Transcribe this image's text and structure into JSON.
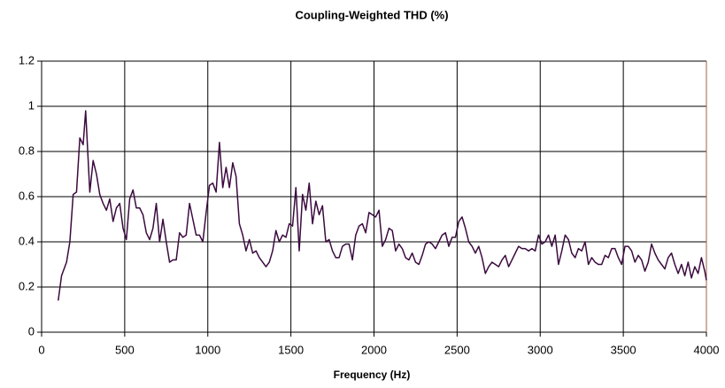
{
  "chart_data": {
    "type": "line",
    "title": "Coupling-Weighted THD (%)",
    "x_label": "Frequency (Hz)",
    "color": "#3b0a3f",
    "grid": true,
    "xlim": [
      0,
      4000
    ],
    "xticks": [
      0,
      500,
      1000,
      1500,
      2000,
      2500,
      3000,
      3500,
      4000
    ],
    "ylim": [
      0,
      1.2
    ],
    "yticks": [
      0,
      0.2,
      0.4,
      0.6,
      0.8,
      1,
      1.2
    ],
    "x": [
      100,
      120,
      150,
      170,
      190,
      210,
      230,
      250,
      265,
      290,
      310,
      330,
      350,
      370,
      390,
      410,
      430,
      450,
      470,
      490,
      510,
      530,
      550,
      570,
      590,
      610,
      630,
      650,
      670,
      690,
      710,
      730,
      750,
      770,
      790,
      810,
      830,
      850,
      870,
      890,
      910,
      930,
      950,
      970,
      990,
      1010,
      1030,
      1050,
      1070,
      1090,
      1110,
      1130,
      1150,
      1170,
      1190,
      1210,
      1230,
      1250,
      1270,
      1290,
      1310,
      1330,
      1350,
      1370,
      1390,
      1410,
      1430,
      1450,
      1470,
      1490,
      1510,
      1530,
      1550,
      1570,
      1590,
      1610,
      1630,
      1650,
      1670,
      1690,
      1710,
      1730,
      1750,
      1770,
      1790,
      1810,
      1830,
      1850,
      1870,
      1890,
      1910,
      1930,
      1950,
      1970,
      1990,
      2010,
      2030,
      2050,
      2070,
      2090,
      2110,
      2130,
      2150,
      2170,
      2190,
      2210,
      2230,
      2250,
      2270,
      2290,
      2310,
      2330,
      2350,
      2370,
      2390,
      2410,
      2430,
      2450,
      2470,
      2490,
      2510,
      2530,
      2550,
      2570,
      2590,
      2610,
      2630,
      2650,
      2670,
      2690,
      2710,
      2730,
      2750,
      2770,
      2790,
      2810,
      2830,
      2850,
      2870,
      2890,
      2910,
      2930,
      2950,
      2970,
      2990,
      3010,
      3030,
      3050,
      3070,
      3090,
      3110,
      3130,
      3150,
      3170,
      3190,
      3210,
      3230,
      3250,
      3270,
      3290,
      3310,
      3330,
      3350,
      3370,
      3390,
      3410,
      3430,
      3450,
      3470,
      3490,
      3510,
      3530,
      3550,
      3570,
      3590,
      3610,
      3630,
      3650,
      3670,
      3690,
      3710,
      3730,
      3750,
      3770,
      3790,
      3810,
      3830,
      3850,
      3870,
      3890,
      3910,
      3930,
      3950,
      3970,
      3990,
      4000
    ],
    "values": [
      0.14,
      0.25,
      0.31,
      0.4,
      0.61,
      0.62,
      0.86,
      0.83,
      0.98,
      0.62,
      0.76,
      0.7,
      0.61,
      0.57,
      0.54,
      0.59,
      0.49,
      0.55,
      0.57,
      0.46,
      0.41,
      0.59,
      0.63,
      0.55,
      0.55,
      0.52,
      0.44,
      0.41,
      0.46,
      0.57,
      0.4,
      0.5,
      0.4,
      0.31,
      0.32,
      0.32,
      0.44,
      0.42,
      0.43,
      0.57,
      0.5,
      0.43,
      0.43,
      0.4,
      0.53,
      0.65,
      0.66,
      0.62,
      0.84,
      0.64,
      0.73,
      0.64,
      0.75,
      0.69,
      0.48,
      0.43,
      0.36,
      0.41,
      0.35,
      0.36,
      0.33,
      0.31,
      0.29,
      0.31,
      0.36,
      0.45,
      0.4,
      0.43,
      0.42,
      0.48,
      0.47,
      0.64,
      0.36,
      0.61,
      0.54,
      0.66,
      0.48,
      0.58,
      0.52,
      0.56,
      0.4,
      0.41,
      0.36,
      0.33,
      0.33,
      0.38,
      0.39,
      0.39,
      0.32,
      0.43,
      0.47,
      0.48,
      0.44,
      0.53,
      0.52,
      0.51,
      0.54,
      0.38,
      0.41,
      0.46,
      0.45,
      0.36,
      0.39,
      0.37,
      0.33,
      0.32,
      0.35,
      0.31,
      0.3,
      0.34,
      0.39,
      0.4,
      0.39,
      0.37,
      0.4,
      0.43,
      0.44,
      0.38,
      0.42,
      0.42,
      0.49,
      0.51,
      0.46,
      0.4,
      0.38,
      0.35,
      0.38,
      0.33,
      0.26,
      0.29,
      0.31,
      0.3,
      0.29,
      0.32,
      0.34,
      0.29,
      0.32,
      0.35,
      0.38,
      0.37,
      0.37,
      0.36,
      0.37,
      0.36,
      0.43,
      0.39,
      0.4,
      0.43,
      0.38,
      0.43,
      0.3,
      0.36,
      0.43,
      0.41,
      0.35,
      0.33,
      0.37,
      0.36,
      0.4,
      0.3,
      0.33,
      0.31,
      0.3,
      0.3,
      0.34,
      0.33,
      0.37,
      0.37,
      0.33,
      0.3,
      0.38,
      0.38,
      0.36,
      0.31,
      0.34,
      0.32,
      0.27,
      0.31,
      0.39,
      0.35,
      0.32,
      0.3,
      0.28,
      0.33,
      0.35,
      0.3,
      0.26,
      0.3,
      0.25,
      0.31,
      0.24,
      0.29,
      0.26,
      0.33,
      0.27,
      0.23
    ]
  }
}
